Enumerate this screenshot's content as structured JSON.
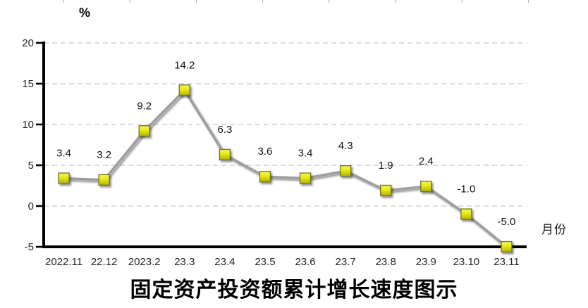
{
  "chart": {
    "unit_label": "%",
    "axis_right_label": "月份",
    "title": "固定资产投资额累计增长速度图示"
  },
  "chart_data": {
    "type": "line",
    "title": "固定资产投资额累计增长速度图示",
    "ylabel": "%",
    "xlabel": "月份",
    "categories": [
      "2022.11",
      "22.12",
      "2023.2",
      "23.3",
      "23.4",
      "23.5",
      "23.6",
      "23.7",
      "23.8",
      "23.9",
      "23.10",
      "23.11"
    ],
    "values": [
      3.4,
      3.2,
      9.2,
      14.2,
      6.3,
      3.6,
      3.4,
      4.3,
      1.9,
      2.4,
      -1.0,
      -5.0
    ],
    "data_labels": [
      "3.4",
      "3.2",
      "9.2",
      "14.2",
      "6.3",
      "3.6",
      "3.4",
      "4.3",
      "1.9",
      "2.4",
      "-1.0",
      "-5.0"
    ],
    "ylim": [
      -5,
      20
    ],
    "yticks": [
      20,
      15,
      10,
      5,
      0,
      -5
    ],
    "grid": "horizontal-dashed",
    "legend": "none",
    "colors": {
      "line": "#9e9e9e",
      "marker_fill_top": "#f7f75a",
      "marker_fill_mid": "#e8e814",
      "marker_fill_bottom": "#aeb100",
      "marker_border": "#6f6f2a",
      "gridline": "#c6c6c6",
      "axis": "#000000",
      "text": "#262626"
    }
  }
}
